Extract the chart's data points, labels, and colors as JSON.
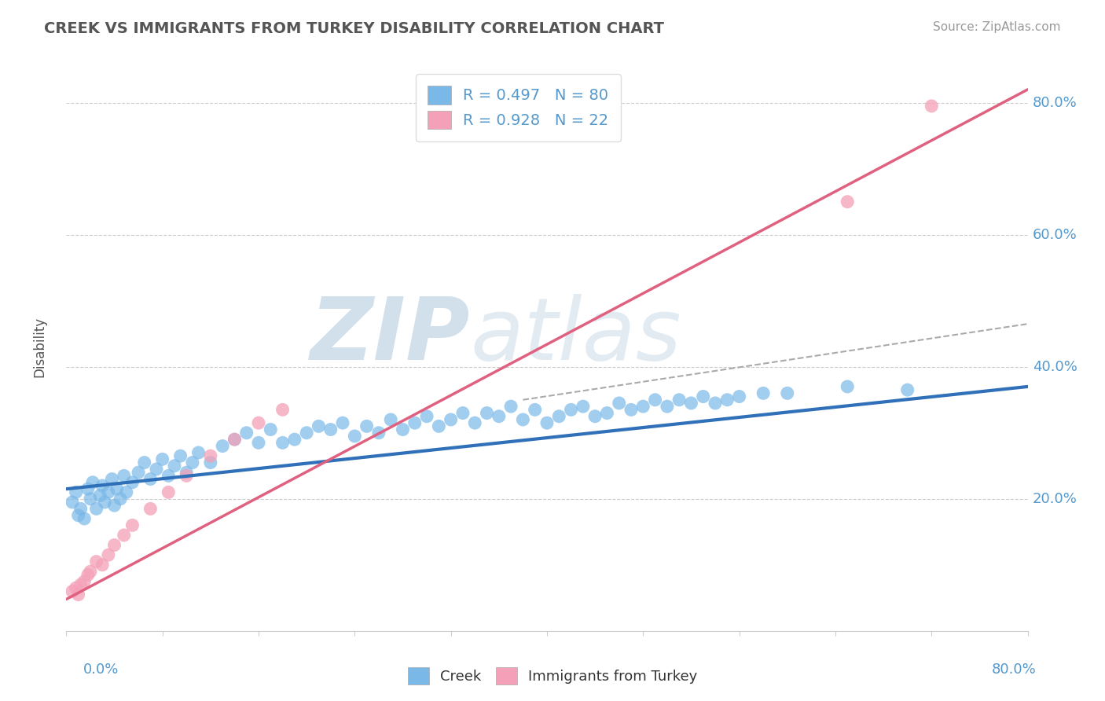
{
  "title": "CREEK VS IMMIGRANTS FROM TURKEY DISABILITY CORRELATION CHART",
  "source_text": "Source: ZipAtlas.com",
  "ylabel": "Disability",
  "xlim": [
    0.0,
    0.8
  ],
  "ylim": [
    0.0,
    0.86
  ],
  "yticks": [
    0.0,
    0.2,
    0.4,
    0.6,
    0.8
  ],
  "ytick_labels": [
    "",
    "20.0%",
    "40.0%",
    "60.0%",
    "80.0%"
  ],
  "creek_color": "#7ab8e8",
  "turkey_color": "#f4a0b8",
  "creek_line_color": "#3070b8",
  "turkey_line_color": "#e06080",
  "dashed_line_color": "#aaaaaa",
  "watermark_zip": "ZIP",
  "watermark_atlas": "atlas",
  "watermark_color": "#d0e4f0",
  "title_color": "#555555",
  "axis_label_color": "#5599cc",
  "creek_x": [
    0.005,
    0.008,
    0.01,
    0.012,
    0.015,
    0.018,
    0.02,
    0.022,
    0.025,
    0.028,
    0.03,
    0.032,
    0.035,
    0.038,
    0.04,
    0.042,
    0.045,
    0.048,
    0.05,
    0.055,
    0.06,
    0.065,
    0.07,
    0.075,
    0.08,
    0.085,
    0.09,
    0.095,
    0.1,
    0.105,
    0.11,
    0.12,
    0.13,
    0.14,
    0.15,
    0.16,
    0.17,
    0.18,
    0.19,
    0.2,
    0.21,
    0.22,
    0.23,
    0.24,
    0.25,
    0.26,
    0.27,
    0.28,
    0.29,
    0.3,
    0.31,
    0.32,
    0.33,
    0.34,
    0.35,
    0.36,
    0.37,
    0.38,
    0.39,
    0.4,
    0.41,
    0.42,
    0.43,
    0.44,
    0.45,
    0.46,
    0.47,
    0.48,
    0.49,
    0.5,
    0.51,
    0.52,
    0.53,
    0.54,
    0.55,
    0.56,
    0.58,
    0.6,
    0.65,
    0.7
  ],
  "creek_y": [
    0.195,
    0.21,
    0.175,
    0.185,
    0.17,
    0.215,
    0.2,
    0.225,
    0.185,
    0.205,
    0.22,
    0.195,
    0.21,
    0.23,
    0.19,
    0.215,
    0.2,
    0.235,
    0.21,
    0.225,
    0.24,
    0.255,
    0.23,
    0.245,
    0.26,
    0.235,
    0.25,
    0.265,
    0.24,
    0.255,
    0.27,
    0.255,
    0.28,
    0.29,
    0.3,
    0.285,
    0.305,
    0.285,
    0.29,
    0.3,
    0.31,
    0.305,
    0.315,
    0.295,
    0.31,
    0.3,
    0.32,
    0.305,
    0.315,
    0.325,
    0.31,
    0.32,
    0.33,
    0.315,
    0.33,
    0.325,
    0.34,
    0.32,
    0.335,
    0.315,
    0.325,
    0.335,
    0.34,
    0.325,
    0.33,
    0.345,
    0.335,
    0.34,
    0.35,
    0.34,
    0.35,
    0.345,
    0.355,
    0.345,
    0.35,
    0.355,
    0.36,
    0.36,
    0.37,
    0.365
  ],
  "turkey_x": [
    0.005,
    0.008,
    0.01,
    0.012,
    0.015,
    0.018,
    0.02,
    0.025,
    0.03,
    0.035,
    0.04,
    0.048,
    0.055,
    0.07,
    0.085,
    0.1,
    0.12,
    0.14,
    0.16,
    0.18,
    0.65,
    0.72
  ],
  "turkey_y": [
    0.06,
    0.065,
    0.055,
    0.07,
    0.075,
    0.085,
    0.09,
    0.105,
    0.1,
    0.115,
    0.13,
    0.145,
    0.16,
    0.185,
    0.21,
    0.235,
    0.265,
    0.29,
    0.315,
    0.335,
    0.65,
    0.795
  ],
  "creek_trend_x": [
    0.0,
    0.8
  ],
  "creek_trend_y": [
    0.215,
    0.37
  ],
  "turkey_trend_x": [
    0.0,
    0.8
  ],
  "turkey_trend_y": [
    0.048,
    0.82
  ],
  "dashed_trend_x": [
    0.38,
    0.8
  ],
  "dashed_trend_y": [
    0.35,
    0.465
  ],
  "legend_label_creek": "R = 0.497   N = 80",
  "legend_label_turkey": "R = 0.928   N = 22"
}
